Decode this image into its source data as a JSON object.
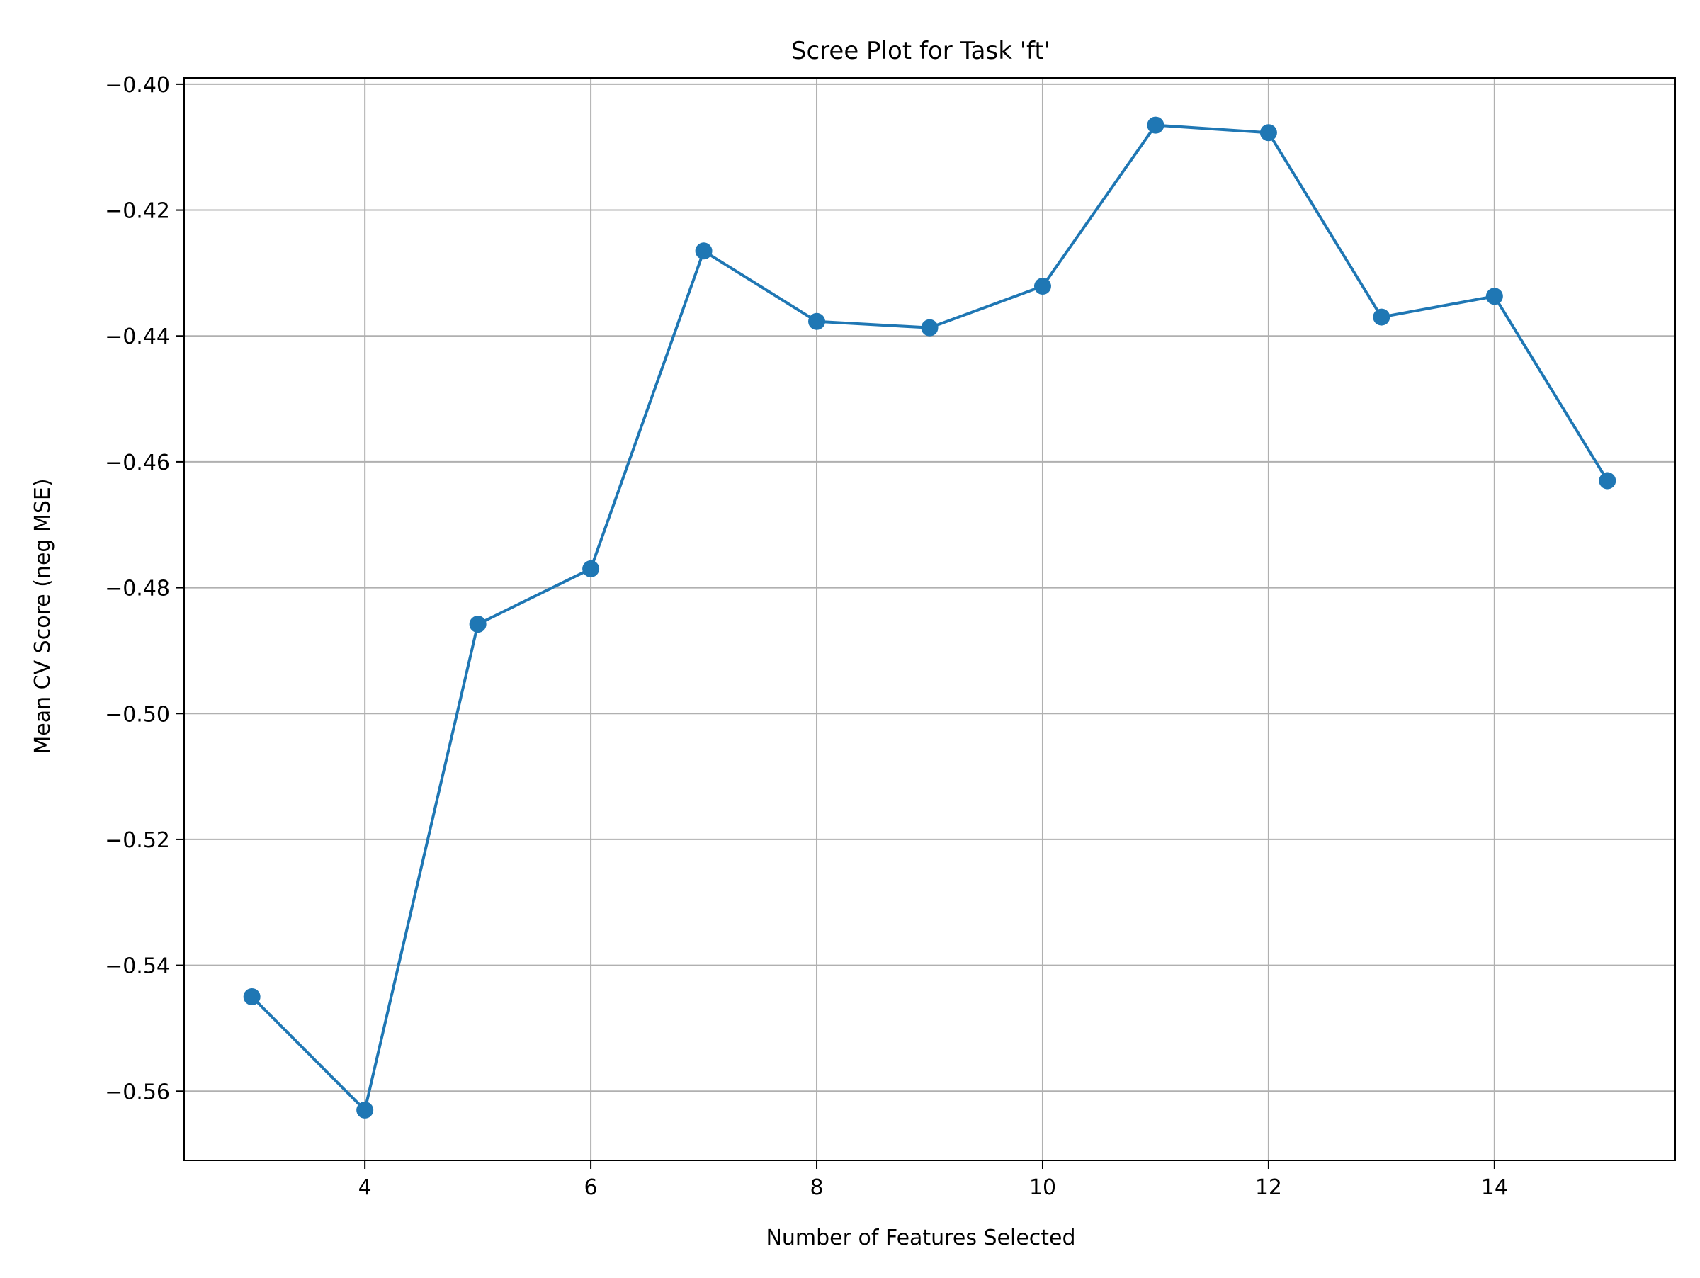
{
  "chart_data": {
    "type": "line",
    "title": "Scree Plot for Task 'ft'",
    "xlabel": "Number of Features Selected",
    "ylabel": "Mean CV Score (neg MSE)",
    "xlim": [
      2.4,
      15.6
    ],
    "ylim": [
      -0.571,
      -0.399
    ],
    "xticks": [
      {
        "value": 4,
        "label": "4"
      },
      {
        "value": 6,
        "label": "6"
      },
      {
        "value": 8,
        "label": "8"
      },
      {
        "value": 10,
        "label": "10"
      },
      {
        "value": 12,
        "label": "12"
      },
      {
        "value": 14,
        "label": "14"
      }
    ],
    "yticks": [
      {
        "value": -0.56,
        "label": "−0.56"
      },
      {
        "value": -0.54,
        "label": "−0.54"
      },
      {
        "value": -0.52,
        "label": "−0.52"
      },
      {
        "value": -0.5,
        "label": "−0.50"
      },
      {
        "value": -0.48,
        "label": "−0.48"
      },
      {
        "value": -0.46,
        "label": "−0.46"
      },
      {
        "value": -0.44,
        "label": "−0.44"
      },
      {
        "value": -0.42,
        "label": "−0.42"
      },
      {
        "value": -0.4,
        "label": "−0.40"
      }
    ],
    "grid": true,
    "colors": {
      "series": "#1f77b4",
      "grid": "#b0b0b0",
      "axis": "#000000"
    },
    "series": [
      {
        "x": [
          3,
          4,
          5,
          6,
          7,
          8,
          9,
          10,
          11,
          12,
          13,
          14,
          15
        ],
        "values": [
          -0.545,
          -0.563,
          -0.4858,
          -0.477,
          -0.4265,
          -0.4377,
          -0.4387,
          -0.4321,
          -0.4065,
          -0.4077,
          -0.437,
          -0.4337,
          -0.463
        ]
      }
    ]
  }
}
